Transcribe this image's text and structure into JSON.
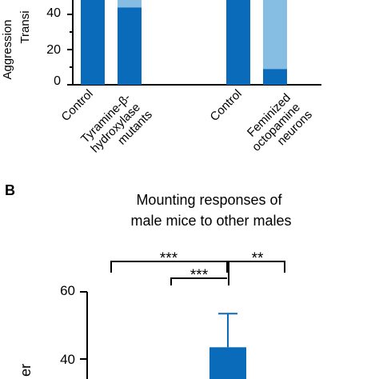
{
  "chart_data": [
    {
      "type": "bar",
      "stacked": true,
      "ylabel_fragments": [
        "Aggression",
        "Transi"
      ],
      "yticks": [
        0,
        20,
        40
      ],
      "ylim": [
        0,
        100
      ],
      "categories": [
        "Control",
        "Tyramine-β-\nhydroxylase\nmutants",
        "Control",
        "Feminized\noctopamine\nneurons"
      ],
      "series": [
        {
          "values": [
            100,
            44,
            100,
            9
          ]
        },
        {
          "values": [
            0,
            56,
            0,
            91
          ]
        }
      ],
      "colors": [
        "#0a6bbb",
        "#85bde3"
      ]
    },
    {
      "type": "bar",
      "panel_label": "B",
      "title": "Mounting responses of\nmale mice to other males",
      "ylabel_fragment": "er",
      "yticks": [
        40,
        60
      ],
      "ylim": [
        0,
        60
      ],
      "values": [
        43.5
      ],
      "error": [
        10
      ],
      "colors": [
        "#0a6bbb"
      ],
      "significance": [
        "***",
        "***",
        "**"
      ]
    }
  ]
}
